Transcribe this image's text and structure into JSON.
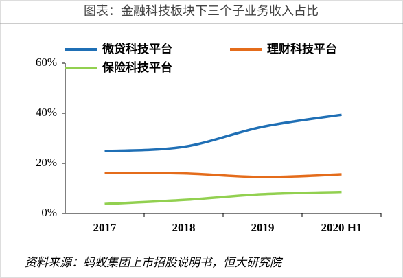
{
  "chart_data": {
    "type": "line",
    "title": "图表：金融科技板块下三个子业务收入占比",
    "source": "资料来源：蚂蚁集团上市招股说明书，恒大研究院",
    "categories": [
      "2017",
      "2018",
      "2019",
      "2020 H1"
    ],
    "series": [
      {
        "name": "微贷科技平台",
        "color": "#1f6fb5",
        "values": [
          24.9,
          26.6,
          34.6,
          39.4
        ]
      },
      {
        "name": "理财科技平台",
        "color": "#e46c1b",
        "values": [
          16.2,
          16.0,
          14.5,
          15.6
        ]
      },
      {
        "name": "保险科技平台",
        "color": "#92d050",
        "values": [
          3.8,
          5.4,
          7.7,
          8.6
        ]
      }
    ],
    "ylim": [
      0,
      60
    ],
    "yticks": [
      {
        "value": 0,
        "label": "0%"
      },
      {
        "value": 20,
        "label": "20%"
      },
      {
        "value": 40,
        "label": "40%"
      },
      {
        "value": 60,
        "label": "60%"
      }
    ],
    "legend": "top-left"
  }
}
